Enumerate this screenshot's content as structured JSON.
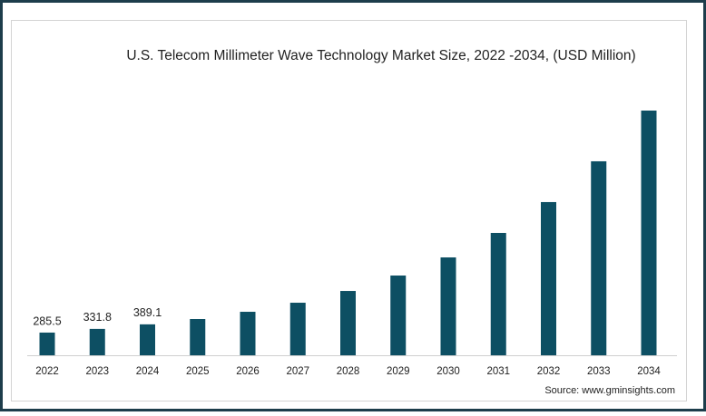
{
  "chart_data": {
    "type": "bar",
    "title": "U.S. Telecom Millimeter Wave Technology Market Size, 2022 -2034, (USD Million)",
    "categories": [
      "2022",
      "2023",
      "2024",
      "2025",
      "2026",
      "2027",
      "2028",
      "2029",
      "2030",
      "2031",
      "2032",
      "2033",
      "2034"
    ],
    "values": [
      285.5,
      331.8,
      389.1,
      456,
      547,
      661,
      809,
      1003,
      1231,
      1539,
      1927,
      2440,
      3078
    ],
    "value_labels": [
      "285.5",
      "331.8",
      "389.1",
      null,
      null,
      null,
      null,
      null,
      null,
      null,
      null,
      null,
      null
    ],
    "color": "#0d4f63",
    "source": "Source: www.gminsights.com"
  }
}
